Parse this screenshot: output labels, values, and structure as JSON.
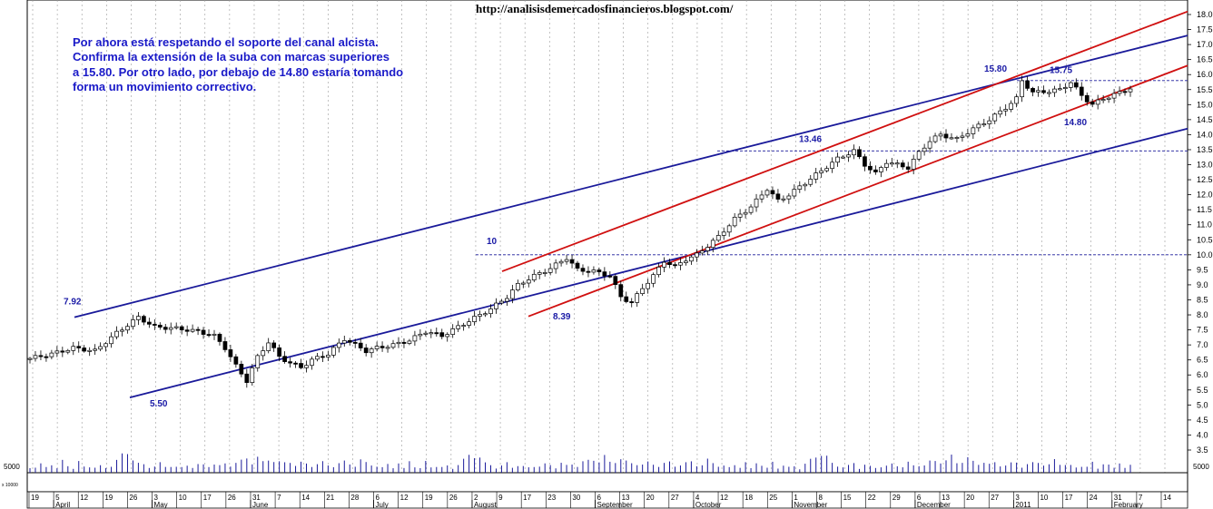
{
  "header": {
    "url": "http://analisisdemercadosfinancieros.blogspot.com/"
  },
  "note": {
    "lines": [
      "Por ahora está respetando el soporte del canal alcista.",
      "Confirma la extensión de la suba con marcas superiores",
      "a 15.80. Por otro lado, por debajo de 14.80 estaría tomando",
      "forma un movimiento correctivo."
    ]
  },
  "chart_data": {
    "type": "candlestick",
    "y_axis": {
      "range": [
        3.25,
        18.1
      ],
      "ticks": [
        "3.5",
        "4.0",
        "4.5",
        "5.0",
        "5.5",
        "6.0",
        "6.5",
        "7.0",
        "7.5",
        "8.0",
        "8.5",
        "9.0",
        "9.5",
        "10.0",
        "10.5",
        "11.0",
        "11.5",
        "12.0",
        "12.5",
        "13.0",
        "13.5",
        "14.0",
        "14.5",
        "15.0",
        "15.5",
        "16.0",
        "16.5",
        "17.0",
        "17.5",
        "18.0"
      ]
    },
    "volume_axis": {
      "ticks": [
        "5000"
      ],
      "unit_label": "x 10000"
    },
    "date_ticks": [
      "19",
      "5",
      "12",
      "19",
      "26",
      "3",
      "10",
      "17",
      "26",
      "31",
      "7",
      "14",
      "21",
      "28",
      "6",
      "12",
      "19",
      "26",
      "2",
      "9",
      "17",
      "23",
      "30",
      "6",
      "13",
      "20",
      "27",
      "4",
      "12",
      "18",
      "25",
      "1",
      "8",
      "15",
      "22",
      "29",
      "6",
      "13",
      "20",
      "27",
      "3",
      "10",
      "17",
      "24",
      "31",
      "7",
      "14"
    ],
    "months": [
      "April",
      "May",
      "June",
      "July",
      "August",
      "September",
      "October",
      "November",
      "December",
      "2011",
      "February"
    ],
    "horizontal_levels": [
      10.0,
      13.46,
      15.8
    ],
    "annotations": [
      {
        "text": "7.92",
        "value": 7.92
      },
      {
        "text": "5.50",
        "value": 5.5
      },
      {
        "text": "10",
        "value": 10.0
      },
      {
        "text": "8.39",
        "value": 8.39
      },
      {
        "text": "13.46",
        "value": 13.46
      },
      {
        "text": "15.80",
        "value": 15.8
      },
      {
        "text": "15.75",
        "value": 15.75
      },
      {
        "text": "14.80",
        "value": 14.8
      }
    ],
    "price_path": [
      [
        0,
        6.55
      ],
      [
        4,
        6.7
      ],
      [
        8,
        6.9
      ],
      [
        12,
        6.8
      ],
      [
        16,
        7.4
      ],
      [
        20,
        7.92
      ],
      [
        23,
        7.6
      ],
      [
        27,
        7.55
      ],
      [
        31,
        7.45
      ],
      [
        34,
        7.3
      ],
      [
        36,
        6.9
      ],
      [
        38,
        6.3
      ],
      [
        40,
        5.8
      ],
      [
        42,
        6.6
      ],
      [
        44,
        7.1
      ],
      [
        46,
        6.6
      ],
      [
        48,
        6.4
      ],
      [
        50,
        6.25
      ],
      [
        52,
        6.5
      ],
      [
        55,
        6.7
      ],
      [
        58,
        7.2
      ],
      [
        60,
        7.0
      ],
      [
        62,
        6.8
      ],
      [
        64,
        6.9
      ],
      [
        67,
        7.0
      ],
      [
        70,
        7.15
      ],
      [
        73,
        7.45
      ],
      [
        76,
        7.3
      ],
      [
        79,
        7.6
      ],
      [
        82,
        7.9
      ],
      [
        85,
        8.2
      ],
      [
        88,
        8.6
      ],
      [
        90,
        9.0
      ],
      [
        93,
        9.3
      ],
      [
        96,
        9.55
      ],
      [
        99,
        9.9
      ],
      [
        101,
        9.5
      ],
      [
        104,
        9.45
      ],
      [
        107,
        9.3
      ],
      [
        109,
        8.6
      ],
      [
        111,
        8.4
      ],
      [
        113,
        8.9
      ],
      [
        115,
        9.3
      ],
      [
        117,
        9.8
      ],
      [
        119,
        9.6
      ],
      [
        121,
        9.85
      ],
      [
        123,
        10.0
      ],
      [
        125,
        10.3
      ],
      [
        127,
        10.6
      ],
      [
        130,
        11.2
      ],
      [
        133,
        11.6
      ],
      [
        136,
        12.2
      ],
      [
        138,
        11.8
      ],
      [
        140,
        12.0
      ],
      [
        143,
        12.4
      ],
      [
        146,
        12.8
      ],
      [
        149,
        13.2
      ],
      [
        152,
        13.46
      ],
      [
        154,
        13.0
      ],
      [
        156,
        12.7
      ],
      [
        158,
        13.1
      ],
      [
        160,
        13.0
      ],
      [
        162,
        12.9
      ],
      [
        164,
        13.4
      ],
      [
        166,
        13.8
      ],
      [
        168,
        14.0
      ],
      [
        171,
        13.85
      ],
      [
        174,
        14.2
      ],
      [
        177,
        14.5
      ],
      [
        180,
        14.9
      ],
      [
        182,
        15.2
      ],
      [
        183,
        15.8
      ],
      [
        185,
        15.4
      ],
      [
        188,
        15.45
      ],
      [
        190,
        15.5
      ],
      [
        192,
        15.75
      ],
      [
        194,
        15.3
      ],
      [
        196,
        15.0
      ],
      [
        198,
        15.2
      ],
      [
        201,
        15.4
      ],
      [
        203,
        15.55
      ]
    ],
    "volume_values": [
      2500,
      1800,
      3000,
      2200,
      3500,
      1500,
      4200,
      2800,
      1600,
      3800,
      2100,
      2600,
      1900,
      2400,
      1700,
      3100,
      4500,
      6200,
      7400,
      5600,
      3300,
      2800,
      2100,
      2500,
      3400,
      2000,
      2900,
      2200,
      1800,
      2600,
      2400,
      3000,
      2700,
      2300,
      3600,
      2500,
      3100,
      2800,
      3900,
      4200,
      5000,
      4400,
      5800,
      3700,
      4600,
      5200,
      3900,
      3400,
      4100,
      2900,
      3600,
      3100,
      2700,
      3300,
      3700,
      2600,
      3000,
      3400,
      3900,
      3200,
      2800,
      4500,
      3500,
      3100
    ]
  }
}
